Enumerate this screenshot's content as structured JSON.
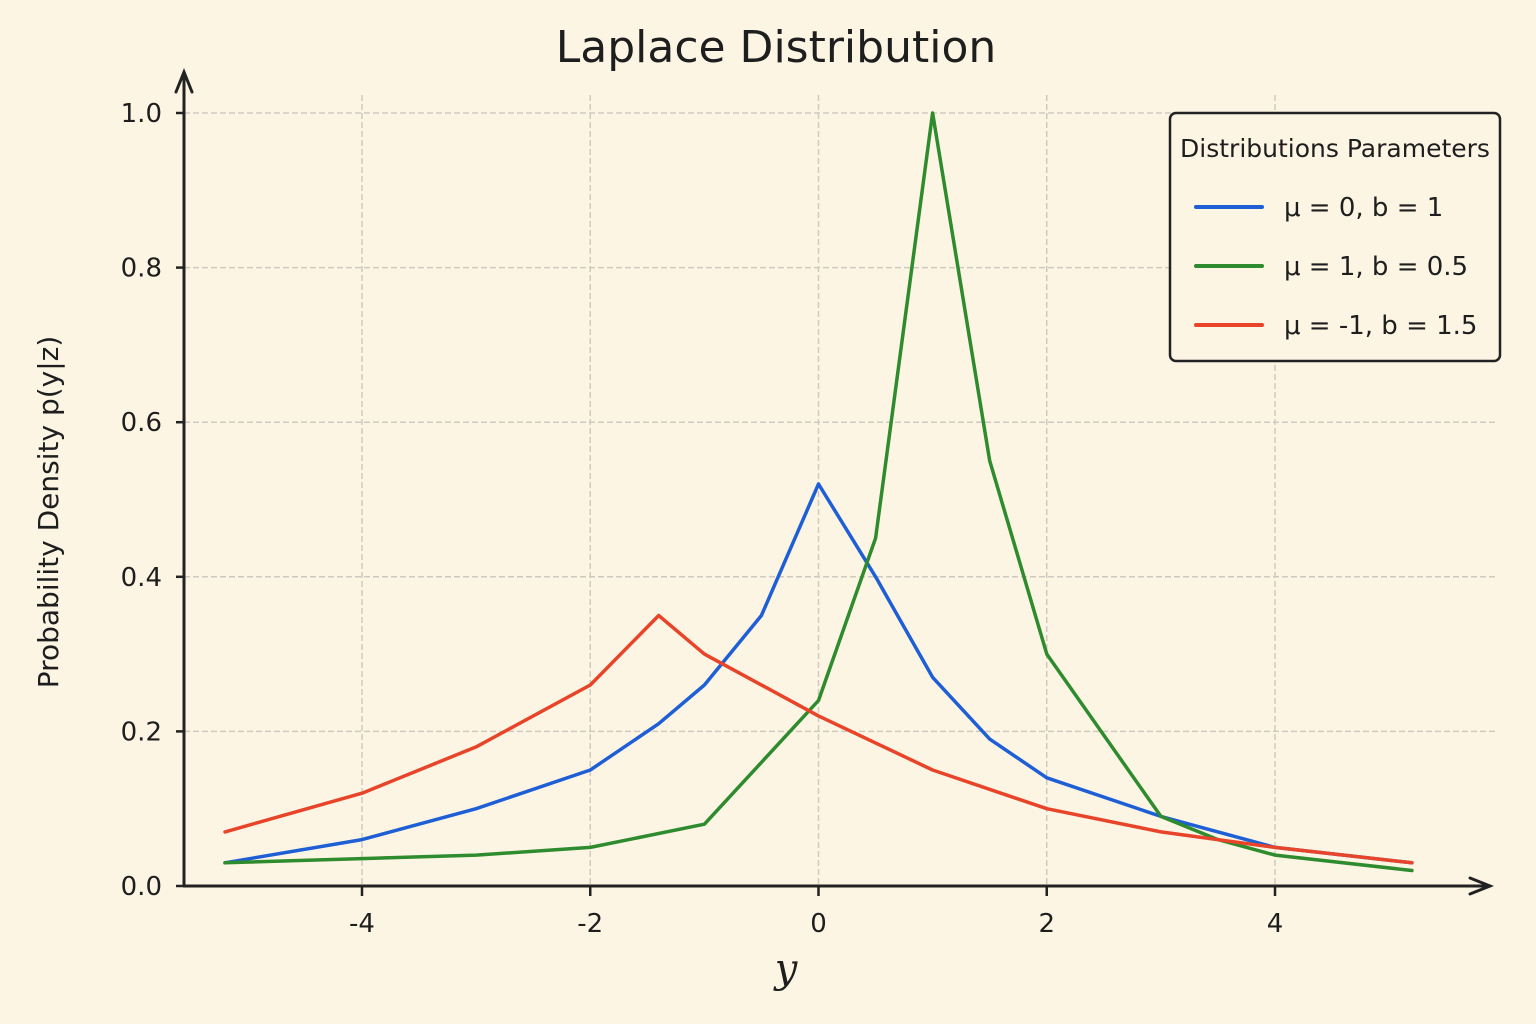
{
  "chart_data": {
    "type": "line",
    "title": "Laplace Distribution",
    "xlabel": "y",
    "ylabel": "Probability Density p(y|z)",
    "xlim": [
      -5.3,
      5.2
    ],
    "ylim": [
      0,
      1.0
    ],
    "x_ticks": [
      -4,
      -2,
      0,
      2,
      4
    ],
    "x_tick_labels": [
      "-4",
      "-2",
      "0",
      "2",
      "4"
    ],
    "y_ticks": [
      0.0,
      0.2,
      0.4,
      0.6,
      0.8,
      1.0
    ],
    "y_tick_labels": [
      "0.0",
      "0.2",
      "0.4",
      "0.6",
      "0.8",
      "1.0"
    ],
    "grid": true,
    "legend": {
      "title": "Distributions Parameters",
      "placement": "top-right"
    },
    "series": [
      {
        "name": "μ = 0, b = 1",
        "color": "#1f5fd6",
        "x": [
          -5.2,
          -4.0,
          -3.0,
          -2.0,
          -1.4,
          -1.0,
          -0.5,
          0.0,
          0.5,
          1.0,
          1.5,
          2.0,
          3.0,
          4.0,
          5.2
        ],
        "y": [
          0.03,
          0.06,
          0.1,
          0.15,
          0.21,
          0.26,
          0.35,
          0.52,
          0.4,
          0.27,
          0.19,
          0.14,
          0.09,
          0.05,
          0.03
        ]
      },
      {
        "name": "μ = 1, b = 0.5",
        "color": "#2e8b2e",
        "x": [
          -5.2,
          -3.0,
          -2.0,
          -1.0,
          0.0,
          0.5,
          1.0,
          1.5,
          2.0,
          3.0,
          3.5,
          4.0,
          5.2
        ],
        "y": [
          0.03,
          0.04,
          0.05,
          0.08,
          0.24,
          0.45,
          1.0,
          0.55,
          0.3,
          0.09,
          0.06,
          0.04,
          0.02
        ]
      },
      {
        "name": "μ = -1, b = 1.5",
        "color": "#e8442a",
        "x": [
          -5.2,
          -4.0,
          -3.0,
          -2.0,
          -1.4,
          -1.0,
          0.0,
          1.0,
          2.0,
          3.0,
          4.0,
          5.2
        ],
        "y": [
          0.07,
          0.12,
          0.18,
          0.26,
          0.35,
          0.3,
          0.22,
          0.15,
          0.1,
          0.07,
          0.05,
          0.03
        ]
      }
    ]
  }
}
